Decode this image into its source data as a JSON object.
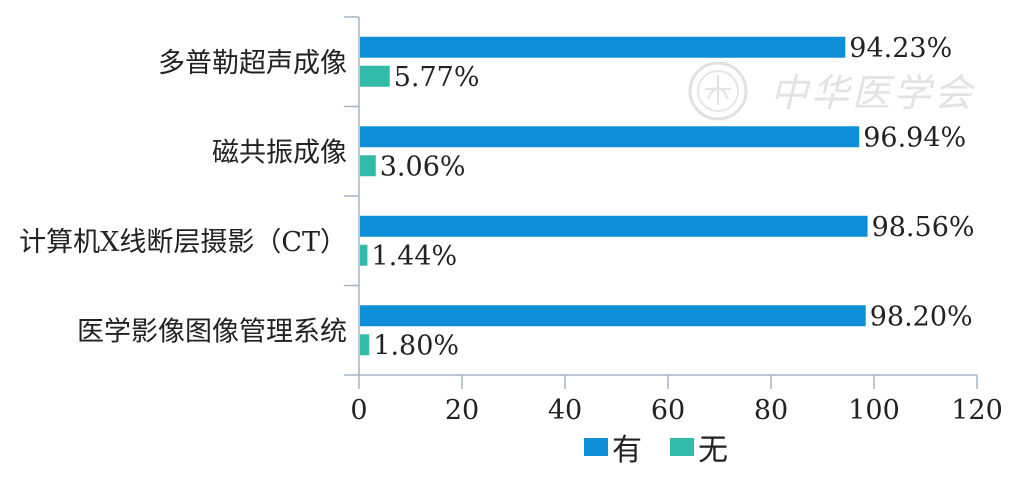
{
  "chart_data": {
    "type": "bar",
    "orientation": "horizontal",
    "categories": [
      "多普勒超声成像",
      "磁共振成像",
      "计算机X线断层摄影（CT）",
      "医学影像图像管理系统"
    ],
    "series": [
      {
        "name": "有",
        "color": "#0E8FD8",
        "values": [
          94.23,
          96.94,
          98.56,
          98.2
        ],
        "labels": [
          "94.23%",
          "96.94%",
          "98.56%",
          "98.20%"
        ]
      },
      {
        "name": "无",
        "color": "#33BBAA",
        "values": [
          5.77,
          3.06,
          1.44,
          1.8
        ],
        "labels": [
          "5.77%",
          "3.06%",
          "1.44%",
          "1.80%"
        ]
      }
    ],
    "x_ticks": [
      "0",
      "20",
      "40",
      "60",
      "80",
      "100",
      "120"
    ],
    "xlim": [
      0,
      120
    ],
    "grid": false,
    "legend_position": "bottom"
  },
  "watermark": {
    "text": "中华医学会",
    "color": "#e3e3e3"
  },
  "colors": {
    "axis": "#a6b4c8"
  }
}
